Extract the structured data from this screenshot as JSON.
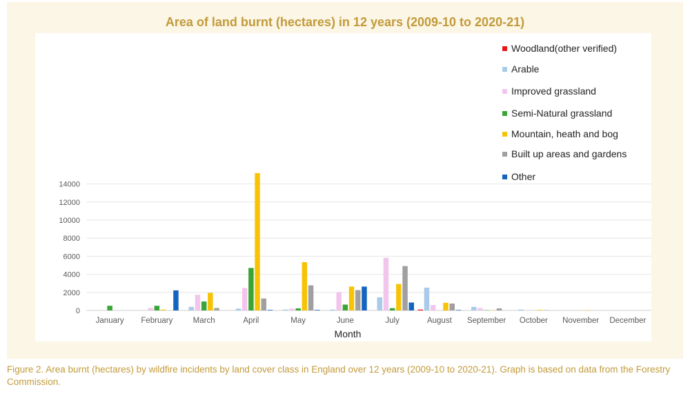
{
  "page": {
    "caption": "Figure 2. Area burnt (hectares) by wildfire incidents by land cover class in England over 12 years (2009-10 to 2020-21). Graph is based on data from the Forestry Commission."
  },
  "chart_data": {
    "type": "bar",
    "title": "Area of land burnt (hectares) in 12  years (2009-10 to 2020-21)",
    "xlabel": "Month",
    "ylabel": "",
    "ylim": [
      0,
      15000
    ],
    "yticks": [
      0,
      2000,
      4000,
      6000,
      8000,
      10000,
      12000,
      14000
    ],
    "grid": true,
    "legend_position": "top-right",
    "categories": [
      "January",
      "February",
      "March",
      "April",
      "May",
      "June",
      "July",
      "August",
      "September",
      "October",
      "November",
      "December"
    ],
    "series": [
      {
        "name": "Woodland(other verified)",
        "color": "#e8161a",
        "values": [
          0,
          0,
          0,
          0,
          0,
          0,
          0,
          100,
          0,
          0,
          0,
          0
        ]
      },
      {
        "name": "Arable",
        "color": "#a8cbe9",
        "values": [
          0,
          0,
          400,
          200,
          100,
          100,
          1450,
          2530,
          400,
          100,
          0,
          0
        ]
      },
      {
        "name": "Improved grassland",
        "color": "#f2c6ec",
        "values": [
          0,
          270,
          1740,
          2490,
          200,
          2020,
          5830,
          600,
          270,
          20,
          0,
          0
        ]
      },
      {
        "name": "Semi-Natural grassland",
        "color": "#3aa535",
        "values": [
          520,
          520,
          990,
          4700,
          230,
          650,
          250,
          0,
          30,
          0,
          0,
          0
        ]
      },
      {
        "name": "Mountain, heath and bog",
        "color": "#f7c307",
        "values": [
          0,
          90,
          1950,
          15200,
          5340,
          2640,
          2920,
          850,
          20,
          60,
          40,
          0
        ]
      },
      {
        "name": "Built up areas and gardens",
        "color": "#a0a0a0",
        "values": [
          0,
          0,
          270,
          1330,
          2780,
          2250,
          4910,
          760,
          230,
          30,
          0,
          0
        ]
      },
      {
        "name": "Other",
        "color": "#1565c0",
        "values": [
          0,
          2220,
          0,
          60,
          60,
          2640,
          880,
          50,
          0,
          0,
          0,
          0
        ]
      }
    ]
  }
}
